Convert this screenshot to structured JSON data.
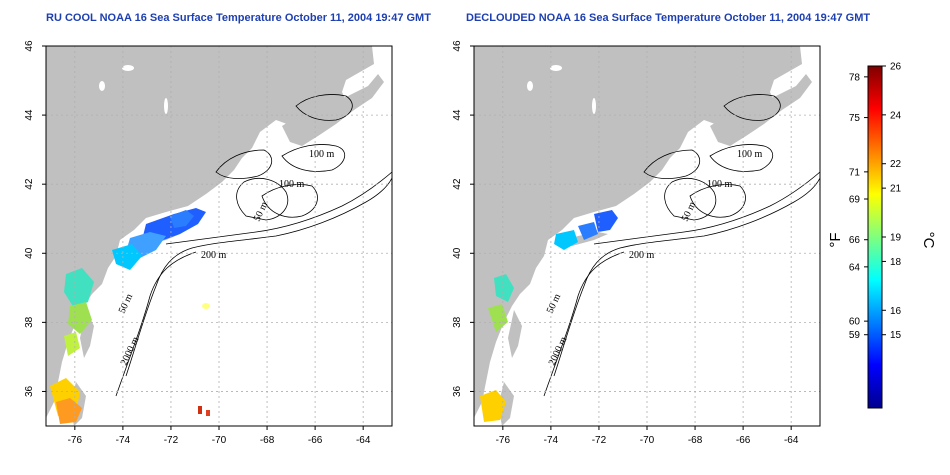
{
  "panels": [
    {
      "title": "RU COOL NOAA 16 Sea Surface Temperature October 11, 2004 19:47 GMT"
    },
    {
      "title": "DECLOUDED NOAA 16 Sea Surface Temperature October 11, 2004 19:47 GMT"
    }
  ],
  "map": {
    "lon_range": [
      -77.2,
      -62.8
    ],
    "lat_range": [
      35.0,
      46.0
    ],
    "x_ticks": [
      -76,
      -74,
      -72,
      -70,
      -68,
      -66,
      -64
    ],
    "y_ticks": [
      36,
      38,
      40,
      42,
      44,
      46
    ],
    "grid": true,
    "land_color": "#c0c0c0",
    "contour_labels": [
      "100 m",
      "100 m",
      "50 m",
      "200 m",
      "50 m",
      "2000 m"
    ]
  },
  "colorbar": {
    "f_ticks": [
      59,
      60,
      64,
      66,
      69,
      71,
      75,
      78
    ],
    "c_ticks": [
      15,
      16,
      18,
      19,
      21,
      22,
      24,
      26
    ],
    "f_unit": "°F",
    "c_unit": "°C",
    "c_range": [
      12,
      26
    ],
    "colors": [
      "#00008f",
      "#0000ff",
      "#007fff",
      "#00ffff",
      "#7fff7f",
      "#ffff00",
      "#ff7f00",
      "#ff0000",
      "#7f0000"
    ]
  }
}
